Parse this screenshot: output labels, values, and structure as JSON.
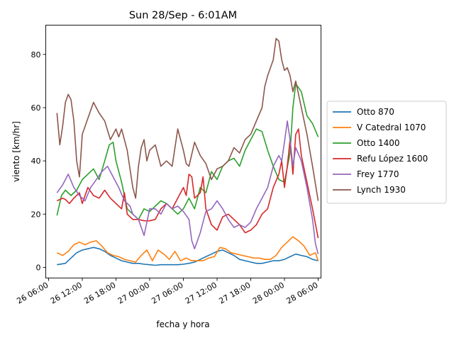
{
  "chart_data": {
    "type": "line",
    "title": "Sun 28/Sep - 6:01AM",
    "xlabel": "fecha y hora",
    "ylabel": "viento [km/hr]",
    "xlim": [
      -0.5,
      48.5
    ],
    "ylim": [
      -4,
      91
    ],
    "x_tick_values": [
      0,
      6,
      12,
      18,
      24,
      30,
      36,
      42,
      48
    ],
    "x_tick_labels": [
      "26 06:00",
      "26 12:00",
      "26 18:00",
      "27 00:00",
      "27 06:00",
      "27 12:00",
      "27 18:00",
      "28 00:00",
      "28 06:00"
    ],
    "y_tick_values": [
      0,
      20,
      40,
      60,
      80
    ],
    "y_tick_labels": [
      "0",
      "20",
      "40",
      "60",
      "80"
    ],
    "legend_position": "right",
    "series": [
      {
        "name": "Otto 870",
        "color": "#1f77b4",
        "x": [
          1.5,
          3,
          4,
          5,
          6,
          7,
          8,
          9,
          10,
          11,
          12,
          13,
          14,
          15,
          16,
          17,
          18,
          19,
          20,
          21,
          22,
          23,
          24,
          25,
          26,
          27,
          28,
          29,
          30,
          31,
          32,
          33,
          34,
          35,
          36,
          37,
          38,
          39,
          40,
          41,
          42,
          43,
          44,
          45,
          46,
          47,
          48
        ],
        "y": [
          1,
          1.5,
          3.5,
          5.5,
          6.5,
          7,
          7.5,
          7,
          6,
          4.5,
          3.5,
          2.5,
          2,
          1.5,
          1.5,
          1.2,
          1,
          0.8,
          1,
          1,
          1,
          1,
          1.2,
          1.5,
          2,
          3,
          4,
          5,
          6,
          6.5,
          5.5,
          4.5,
          3,
          2.5,
          2,
          1.5,
          1.5,
          2,
          2.5,
          2.5,
          3,
          4,
          5,
          4.5,
          4,
          3,
          2.5
        ]
      },
      {
        "name": "V Catedral 1070",
        "color": "#ff7f0e",
        "x": [
          1.5,
          2.5,
          3.5,
          4.5,
          5.5,
          6.5,
          7.5,
          8.5,
          9.5,
          10.5,
          11.5,
          12.5,
          13.5,
          14.5,
          15.5,
          16.5,
          17.5,
          18.5,
          19.5,
          20.5,
          21.5,
          22.5,
          23.5,
          24.5,
          25.5,
          26.5,
          27.5,
          28.5,
          29.5,
          30.5,
          31.5,
          32.5,
          33.5,
          34.5,
          35.5,
          36.5,
          37.5,
          38.5,
          39.5,
          40.5,
          41.5,
          42.5,
          43.5,
          44.5,
          45.5,
          46.5,
          47.5,
          48
        ],
        "y": [
          5.5,
          4.5,
          6,
          8.5,
          9.5,
          8.5,
          9.5,
          10,
          8,
          5.5,
          4.5,
          4,
          3,
          2.5,
          2,
          4.5,
          6.5,
          2.5,
          6.5,
          5,
          3,
          6,
          2.5,
          3.5,
          2.5,
          2.5,
          2.5,
          3.5,
          4,
          7.5,
          7,
          5.5,
          5,
          4.5,
          4,
          3.5,
          3.5,
          3,
          3,
          4.5,
          7.5,
          9.5,
          11.5,
          10,
          8,
          4.5,
          5.5,
          2.5
        ]
      },
      {
        "name": "Otto 1400",
        "color": "#2ca02c",
        "x": [
          1.5,
          2.3,
          3,
          4,
          5,
          6,
          7,
          8,
          9,
          10,
          10.8,
          11.5,
          12,
          13,
          14,
          15,
          16,
          17,
          18,
          19,
          20,
          21,
          22,
          23,
          24,
          25,
          26,
          27,
          28,
          29,
          30,
          31,
          32,
          33,
          34,
          35,
          36,
          37,
          38,
          39,
          40,
          41,
          42,
          43,
          43.5,
          44,
          45,
          46,
          47,
          48
        ],
        "y": [
          19.5,
          27,
          29,
          27,
          29,
          33,
          35,
          37,
          33,
          40,
          46,
          47,
          40,
          32,
          22,
          20,
          18,
          22,
          21,
          23,
          25,
          24,
          22,
          20,
          22,
          26,
          22,
          30,
          28,
          36,
          33,
          38,
          40,
          41,
          38,
          44,
          48,
          52,
          51,
          44,
          38,
          33,
          32,
          43,
          60,
          69,
          66,
          57,
          54,
          49
        ]
      },
      {
        "name": "Refu López 1600",
        "color": "#d62728",
        "x": [
          1.5,
          2.5,
          3,
          3.7,
          4.5,
          5.5,
          6,
          7,
          8,
          9,
          10,
          11,
          12,
          13,
          13.5,
          14,
          15,
          16,
          17,
          18,
          19,
          20,
          21,
          22,
          23,
          24,
          24.5,
          25,
          25.5,
          26,
          27,
          27.5,
          28,
          29,
          30,
          31,
          32,
          33,
          34,
          35,
          36,
          37,
          38,
          39,
          40,
          41,
          41.5,
          42,
          42.5,
          43,
          43.5,
          44,
          44.5,
          45,
          46,
          47,
          48
        ],
        "y": [
          25,
          26,
          25.5,
          24,
          26,
          28,
          24,
          30,
          27,
          26,
          29,
          26,
          24,
          22,
          28,
          20,
          18,
          18,
          17.5,
          17.5,
          18,
          22,
          24,
          22,
          26,
          30,
          27,
          35,
          34,
          26,
          28,
          34,
          22,
          16,
          14,
          19,
          20,
          18,
          16,
          13,
          14,
          16,
          20,
          22,
          30,
          35,
          40,
          30,
          38,
          48,
          35,
          50,
          52,
          42,
          32,
          22,
          11
        ]
      },
      {
        "name": "Frey 1770",
        "color": "#9467bd",
        "x": [
          1.5,
          2.5,
          3.5,
          4.5,
          5.5,
          6.5,
          7.5,
          8.5,
          9.5,
          10.5,
          11.5,
          12.5,
          13.5,
          14.5,
          15,
          16,
          17,
          18,
          19,
          20,
          21,
          22,
          23,
          24,
          25,
          25.5,
          26,
          27,
          28,
          29,
          30,
          31,
          32,
          33,
          34,
          35,
          36,
          37,
          38,
          39,
          40,
          41,
          41.5,
          42,
          42.5,
          43,
          43.5,
          44,
          45,
          46,
          47,
          47.5,
          48
        ],
        "y": [
          28,
          31,
          35,
          30,
          27,
          25,
          30,
          33,
          36,
          38,
          34,
          30,
          25,
          23,
          20,
          18,
          12,
          22,
          22,
          20,
          24,
          22,
          23,
          21,
          18,
          10,
          7,
          13,
          21,
          22,
          25,
          22,
          18,
          15,
          16,
          15,
          17,
          22,
          26,
          30,
          38,
          42,
          40,
          47,
          55,
          48,
          38,
          45,
          40,
          30,
          18,
          9,
          5
        ]
      },
      {
        "name": "Lynch 1930",
        "color": "#8c564b",
        "x": [
          1.5,
          2,
          2.5,
          3,
          3.5,
          4,
          4.5,
          5,
          5.5,
          6,
          7,
          8,
          9,
          10,
          11,
          12,
          12.5,
          13,
          14,
          15,
          15.5,
          16,
          16.5,
          17,
          17.5,
          18,
          19,
          20,
          21,
          22,
          23,
          24,
          24.5,
          25,
          26,
          27,
          28,
          29,
          30,
          31,
          32,
          33,
          34,
          35,
          36,
          37,
          38,
          38.5,
          39,
          40,
          40.5,
          41,
          41.5,
          42,
          42.5,
          43,
          43.5,
          44,
          45,
          46,
          47,
          48
        ],
        "y": [
          58,
          46,
          53,
          62,
          65,
          63,
          55,
          40,
          34,
          50,
          56,
          62,
          58,
          55,
          48,
          52,
          49,
          52,
          44,
          30,
          26,
          38,
          45,
          48,
          40,
          44,
          46,
          38,
          40,
          38,
          52,
          44,
          39,
          38,
          47,
          42,
          39,
          33,
          37,
          38,
          40,
          45,
          43,
          48,
          50,
          55,
          60,
          68,
          72,
          78,
          86,
          85,
          78,
          74,
          75,
          72,
          66,
          70,
          60,
          50,
          38,
          25
        ]
      }
    ]
  }
}
